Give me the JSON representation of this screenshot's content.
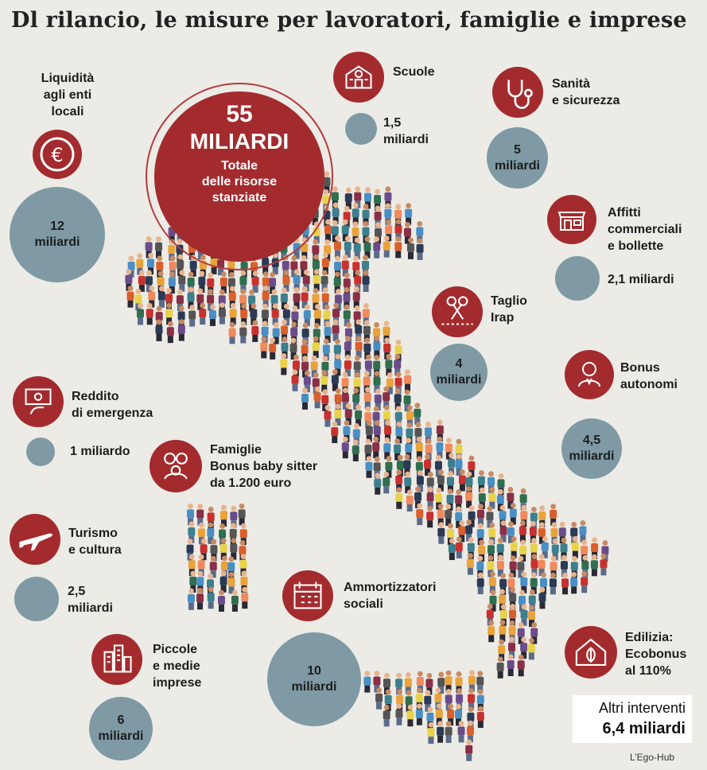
{
  "title": "Dl rilancio, le misure per lavoratori, famiglie e imprese",
  "total": {
    "number": "55",
    "unit": "MILIARDI",
    "caption_1": "Totale",
    "caption_2": "delle risorse",
    "caption_3": "stanziate"
  },
  "measures": {
    "liquidita": {
      "label": [
        "Liquidità",
        "agli enti",
        "locali"
      ],
      "amount": [
        "12",
        "miliardi"
      ],
      "icon": "euro-icon"
    },
    "scuole": {
      "label": [
        "Scuole"
      ],
      "amount": [
        "1,5",
        "miliardi"
      ],
      "icon": "school-icon"
    },
    "sanita": {
      "label": [
        "Sanità",
        "e sicurezza"
      ],
      "amount": [
        "5",
        "miliardi"
      ],
      "icon": "stethoscope-icon"
    },
    "affitti": {
      "label": [
        "Affitti",
        "commerciali",
        "e bollette"
      ],
      "amount": [
        "2,1 miliardi"
      ],
      "icon": "shop-icon"
    },
    "irap": {
      "label": [
        "Taglio",
        "Irap"
      ],
      "amount": [
        "4",
        "miliardi"
      ],
      "icon": "scissors-icon"
    },
    "autonomi": {
      "label": [
        "Bonus",
        "autonomi"
      ],
      "amount": [
        "4,5",
        "miliardi"
      ],
      "icon": "worker-icon"
    },
    "reddito": {
      "label": [
        "Reddito",
        "di emergenza"
      ],
      "amount": [
        "1 miliardo"
      ],
      "icon": "banknote-hand-icon"
    },
    "famiglie": {
      "label": [
        "Famiglie",
        "Bonus baby sitter",
        "da 1.200 euro"
      ],
      "icon": "family-icon"
    },
    "turismo": {
      "label": [
        "Turismo",
        "e cultura"
      ],
      "amount": [
        "2,5",
        "miliardi"
      ],
      "icon": "airplane-icon"
    },
    "ammortizzatori": {
      "label": [
        "Ammortizzatori",
        "sociali"
      ],
      "amount": [
        "10",
        "miliardi"
      ],
      "icon": "calendar-icon"
    },
    "pmi": {
      "label": [
        "Piccole",
        "e medie",
        "imprese"
      ],
      "amount": [
        "6",
        "miliardi"
      ],
      "icon": "buildings-icon"
    },
    "edilizia": {
      "label": [
        "Edilizia:",
        "Ecobonus",
        "al 110%"
      ],
      "icon": "eco-house-icon"
    }
  },
  "other": {
    "line1": "Altri interventi",
    "line2": "6,4 miliardi"
  },
  "credit": "L’Ego-Hub",
  "colors": {
    "accent": "#a32b2e",
    "bubble": "#7f9aa5",
    "background": "#ecebe6"
  }
}
